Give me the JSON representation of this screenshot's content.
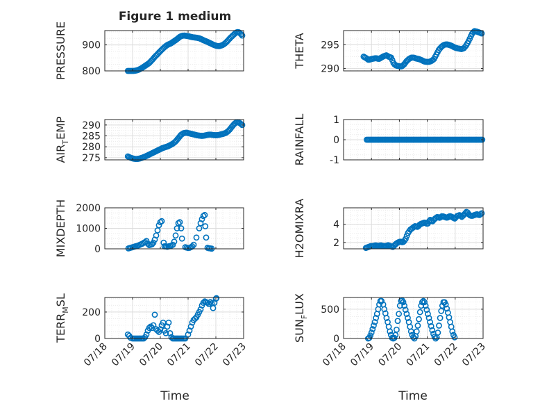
{
  "figure": {
    "title": "Figure 1 medium",
    "xlabel": "Time",
    "date_ticks": [
      "07/18",
      "07/19",
      "07/20",
      "07/21",
      "07/22",
      "07/23"
    ]
  },
  "colors": {
    "marker": "#0072BD",
    "axis": "#262626",
    "grid": "#dcdcdc",
    "minor_grid": "#ececec",
    "background": "#ffffff"
  },
  "chart_data": [
    {
      "type": "scatter",
      "ylabel": "PRESSURE",
      "ylabel_sub": "",
      "title": "Figure 1 medium",
      "xlim": [
        "07/18",
        "07/23"
      ],
      "ylim": [
        800,
        955
      ],
      "yticks": [
        800,
        900
      ],
      "grid": true,
      "x_first": 0.83,
      "x_last": 4.95,
      "n_points": 100,
      "values": [
        800,
        800,
        800,
        800,
        801,
        803,
        806,
        810,
        815,
        820,
        825,
        830,
        838,
        846,
        855,
        862,
        870,
        878,
        885,
        892,
        898,
        902,
        905,
        910,
        915,
        920,
        926,
        932,
        935,
        936,
        935,
        934,
        932,
        930,
        929,
        928,
        927,
        925,
        922,
        918,
        915,
        912,
        908,
        905,
        901,
        898,
        896,
        895,
        897,
        900,
        905,
        912,
        920,
        928,
        935,
        942,
        948,
        950,
        944,
        936
      ]
    },
    {
      "type": "scatter",
      "ylabel": "THETA",
      "ylabel_sub": "",
      "xlim": [
        "07/18",
        "07/23"
      ],
      "ylim": [
        289.5,
        298
      ],
      "yticks": [
        290,
        295
      ],
      "grid": true,
      "x_first": 0.72,
      "x_last": 4.95,
      "n_points": 100,
      "values": [
        292.5,
        292.2,
        291.8,
        292.0,
        292.1,
        292.2,
        292.0,
        292.3,
        292.6,
        292.8,
        292.5,
        292.3,
        291.0,
        290.6,
        290.5,
        290.4,
        290.8,
        291.5,
        292.0,
        292.3,
        292.3,
        292.1,
        292.0,
        291.8,
        291.5,
        291.4,
        291.4,
        291.6,
        292.0,
        293.0,
        294.0,
        294.6,
        295.0,
        295.1,
        295.0,
        294.8,
        294.5,
        294.3,
        294.2,
        294.1,
        294.3,
        295.0,
        296.0,
        297.2,
        297.9,
        297.8,
        297.6,
        297.4
      ]
    },
    {
      "type": "scatter",
      "ylabel": "AIR",
      "ylabel_sub": "T",
      "ylabel_rest": "EMP",
      "xlim": [
        "07/18",
        "07/23"
      ],
      "ylim": [
        274,
        292.5
      ],
      "yticks": [
        275,
        280,
        285,
        290
      ],
      "grid": true,
      "x_first": 0.83,
      "x_last": 4.95,
      "n_points": 100,
      "values": [
        275.6,
        275.0,
        274.6,
        274.4,
        274.5,
        274.8,
        275.3,
        275.8,
        276.4,
        277.0,
        277.6,
        278.2,
        278.8,
        279.4,
        279.8,
        280.2,
        280.8,
        281.5,
        282.5,
        284.0,
        285.5,
        286.3,
        286.5,
        286.2,
        285.9,
        285.6,
        285.3,
        285.1,
        285.0,
        285.2,
        285.5,
        285.6,
        285.4,
        285.3,
        285.4,
        285.7,
        286.0,
        286.5,
        287.5,
        289.0,
        290.5,
        291.4,
        291.0,
        290.0
      ]
    },
    {
      "type": "scatter",
      "ylabel": "RAINFALL",
      "ylabel_sub": "",
      "xlim": [
        "07/18",
        "07/23"
      ],
      "ylim": [
        -1,
        1
      ],
      "yticks": [
        -1,
        0,
        1
      ],
      "grid": true,
      "x_first": 0.83,
      "x_last": 4.97,
      "n_points": 100,
      "values": [
        0
      ]
    },
    {
      "type": "scatter",
      "ylabel": "MIXDEPTH",
      "ylabel_sub": "",
      "xlim": [
        "07/18",
        "07/23"
      ],
      "ylim": [
        0,
        2000
      ],
      "yticks": [
        0,
        1000,
        2000
      ],
      "grid": true,
      "points": [
        [
          0.85,
          20
        ],
        [
          0.9,
          40
        ],
        [
          0.95,
          60
        ],
        [
          1.0,
          80
        ],
        [
          1.05,
          100
        ],
        [
          1.1,
          120
        ],
        [
          1.15,
          140
        ],
        [
          1.2,
          160
        ],
        [
          1.25,
          190
        ],
        [
          1.3,
          220
        ],
        [
          1.35,
          250
        ],
        [
          1.4,
          290
        ],
        [
          1.45,
          330
        ],
        [
          1.5,
          380
        ],
        [
          1.55,
          250
        ],
        [
          1.6,
          180
        ],
        [
          1.65,
          200
        ],
        [
          1.7,
          220
        ],
        [
          1.75,
          300
        ],
        [
          1.8,
          450
        ],
        [
          1.85,
          650
        ],
        [
          1.9,
          900
        ],
        [
          1.95,
          1150
        ],
        [
          2.0,
          1300
        ],
        [
          2.05,
          1350
        ],
        [
          2.12,
          300
        ],
        [
          2.15,
          120
        ],
        [
          2.2,
          120
        ],
        [
          2.25,
          100
        ],
        [
          2.3,
          120
        ],
        [
          2.35,
          140
        ],
        [
          2.4,
          160
        ],
        [
          2.45,
          200
        ],
        [
          2.5,
          350
        ],
        [
          2.55,
          650
        ],
        [
          2.6,
          1000
        ],
        [
          2.65,
          1250
        ],
        [
          2.7,
          1300
        ],
        [
          2.75,
          1000
        ],
        [
          2.78,
          500
        ],
        [
          2.9,
          80
        ],
        [
          2.95,
          60
        ],
        [
          3.0,
          40
        ],
        [
          3.05,
          50
        ],
        [
          3.1,
          80
        ],
        [
          3.15,
          120
        ],
        [
          3.2,
          200
        ],
        [
          3.3,
          550
        ],
        [
          3.4,
          1000
        ],
        [
          3.45,
          1250
        ],
        [
          3.5,
          1450
        ],
        [
          3.55,
          1600
        ],
        [
          3.6,
          1650
        ],
        [
          3.62,
          1100
        ],
        [
          3.65,
          550
        ],
        [
          3.7,
          50
        ],
        [
          3.75,
          30
        ],
        [
          3.8,
          20
        ],
        [
          3.85,
          10
        ]
      ]
    },
    {
      "type": "scatter",
      "ylabel": "H2OMIXRA",
      "ylabel_sub": "",
      "xlim": [
        "07/18",
        "07/23"
      ],
      "ylim": [
        1.3,
        5.8
      ],
      "yticks": [
        2,
        4
      ],
      "grid": true,
      "x_first": 0.8,
      "x_last": 4.95,
      "n_points": 100,
      "values": [
        1.4,
        1.5,
        1.6,
        1.6,
        1.7,
        1.6,
        1.7,
        1.6,
        1.6,
        1.7,
        1.6,
        1.5,
        1.8,
        2.0,
        2.1,
        2.0,
        2.3,
        3.0,
        3.4,
        3.6,
        3.8,
        3.7,
        4.0,
        4.1,
        4.2,
        4.0,
        4.5,
        4.3,
        4.6,
        4.8,
        4.7,
        4.9,
        4.8,
        4.7,
        4.9,
        4.8,
        4.6,
        4.9,
        5.0,
        4.8,
        5.1,
        5.4,
        5.0,
        4.9,
        5.0,
        5.1,
        5.0,
        5.2
      ]
    },
    {
      "type": "scatter",
      "ylabel": "TERR",
      "ylabel_sub": "M",
      "ylabel_rest": "SL",
      "xlim": [
        "07/18",
        "07/23"
      ],
      "ylim": [
        0,
        310
      ],
      "yticks": [
        0,
        200
      ],
      "grid": true,
      "points": [
        [
          0.83,
          30
        ],
        [
          0.88,
          20
        ],
        [
          0.93,
          5
        ],
        [
          1.0,
          0
        ],
        [
          1.05,
          0
        ],
        [
          1.1,
          0
        ],
        [
          1.15,
          0
        ],
        [
          1.2,
          0
        ],
        [
          1.25,
          0
        ],
        [
          1.3,
          0
        ],
        [
          1.35,
          0
        ],
        [
          1.4,
          0
        ],
        [
          1.45,
          10
        ],
        [
          1.5,
          30
        ],
        [
          1.55,
          60
        ],
        [
          1.6,
          80
        ],
        [
          1.65,
          90
        ],
        [
          1.7,
          80
        ],
        [
          1.75,
          100
        ],
        [
          1.8,
          180
        ],
        [
          1.85,
          70
        ],
        [
          1.9,
          60
        ],
        [
          1.95,
          50
        ],
        [
          2.0,
          70
        ],
        [
          2.05,
          100
        ],
        [
          2.1,
          120
        ],
        [
          2.15,
          60
        ],
        [
          2.2,
          40
        ],
        [
          2.25,
          90
        ],
        [
          2.3,
          120
        ],
        [
          2.35,
          40
        ],
        [
          2.4,
          10
        ],
        [
          2.45,
          0
        ],
        [
          2.5,
          0
        ],
        [
          2.55,
          0
        ],
        [
          2.6,
          0
        ],
        [
          2.65,
          0
        ],
        [
          2.7,
          0
        ],
        [
          2.75,
          0
        ],
        [
          2.8,
          0
        ],
        [
          2.85,
          0
        ],
        [
          2.9,
          0
        ],
        [
          3.0,
          30
        ],
        [
          3.05,
          60
        ],
        [
          3.1,
          90
        ],
        [
          3.15,
          120
        ],
        [
          3.2,
          140
        ],
        [
          3.25,
          150
        ],
        [
          3.3,
          160
        ],
        [
          3.35,
          180
        ],
        [
          3.4,
          200
        ],
        [
          3.45,
          220
        ],
        [
          3.5,
          250
        ],
        [
          3.55,
          270
        ],
        [
          3.6,
          280
        ],
        [
          3.65,
          275
        ],
        [
          3.7,
          270
        ],
        [
          3.75,
          260
        ],
        [
          3.8,
          275
        ],
        [
          3.85,
          265
        ],
        [
          3.9,
          230
        ],
        [
          3.95,
          270
        ],
        [
          4.0,
          300
        ],
        [
          4.02,
          305
        ]
      ]
    },
    {
      "type": "scatter",
      "ylabel": "SUN",
      "ylabel_sub": "F",
      "ylabel_rest": "LUX",
      "xlim": [
        "07/18",
        "07/23"
      ],
      "ylim": [
        0,
        700
      ],
      "yticks": [
        0,
        500
      ],
      "grid": true,
      "points": [
        [
          0.88,
          0
        ],
        [
          0.92,
          10
        ],
        [
          0.96,
          50
        ],
        [
          1.0,
          100
        ],
        [
          1.04,
          160
        ],
        [
          1.08,
          220
        ],
        [
          1.12,
          280
        ],
        [
          1.16,
          350
        ],
        [
          1.2,
          420
        ],
        [
          1.24,
          500
        ],
        [
          1.28,
          580
        ],
        [
          1.32,
          640
        ],
        [
          1.36,
          640
        ],
        [
          1.42,
          580
        ],
        [
          1.46,
          500
        ],
        [
          1.5,
          430
        ],
        [
          1.54,
          350
        ],
        [
          1.58,
          280
        ],
        [
          1.62,
          200
        ],
        [
          1.66,
          120
        ],
        [
          1.7,
          60
        ],
        [
          1.74,
          10
        ],
        [
          1.78,
          0
        ],
        [
          1.82,
          10
        ],
        [
          1.86,
          60
        ],
        [
          1.9,
          150
        ],
        [
          1.94,
          300
        ],
        [
          1.98,
          420
        ],
        [
          2.02,
          560
        ],
        [
          2.06,
          640
        ],
        [
          2.1,
          650
        ],
        [
          2.14,
          620
        ],
        [
          2.18,
          560
        ],
        [
          2.22,
          490
        ],
        [
          2.26,
          420
        ],
        [
          2.3,
          350
        ],
        [
          2.34,
          280
        ],
        [
          2.38,
          200
        ],
        [
          2.42,
          120
        ],
        [
          2.46,
          60
        ],
        [
          2.5,
          20
        ],
        [
          2.54,
          0
        ],
        [
          2.58,
          40
        ],
        [
          2.62,
          120
        ],
        [
          2.66,
          220
        ],
        [
          2.7,
          330
        ],
        [
          2.74,
          450
        ],
        [
          2.78,
          560
        ],
        [
          2.82,
          620
        ],
        [
          2.86,
          640
        ],
        [
          2.9,
          620
        ],
        [
          2.94,
          560
        ],
        [
          2.98,
          490
        ],
        [
          3.02,
          420
        ],
        [
          3.06,
          350
        ],
        [
          3.1,
          280
        ],
        [
          3.14,
          210
        ],
        [
          3.18,
          140
        ],
        [
          3.22,
          80
        ],
        [
          3.26,
          30
        ],
        [
          3.3,
          0
        ],
        [
          3.34,
          20
        ],
        [
          3.38,
          100
        ],
        [
          3.42,
          220
        ],
        [
          3.46,
          350
        ],
        [
          3.5,
          470
        ],
        [
          3.54,
          560
        ],
        [
          3.58,
          620
        ],
        [
          3.62,
          620
        ],
        [
          3.66,
          580
        ],
        [
          3.7,
          510
        ],
        [
          3.74,
          440
        ],
        [
          3.78,
          360
        ],
        [
          3.82,
          280
        ],
        [
          3.86,
          200
        ],
        [
          3.9,
          120
        ],
        [
          3.94,
          60
        ],
        [
          3.98,
          20
        ]
      ]
    }
  ]
}
